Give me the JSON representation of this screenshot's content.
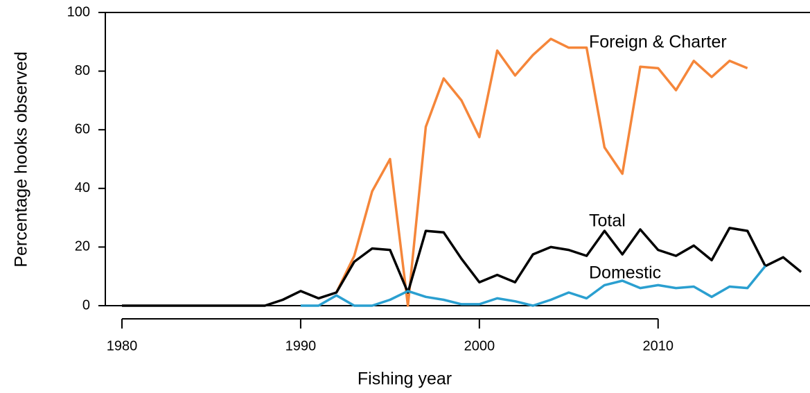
{
  "chart_data": {
    "type": "line",
    "xlabel": "Fishing year",
    "ylabel": "Percentage hooks observed",
    "x": [
      1980,
      1981,
      1982,
      1983,
      1984,
      1985,
      1986,
      1987,
      1988,
      1989,
      1990,
      1991,
      1992,
      1993,
      1994,
      1995,
      1996,
      1997,
      1998,
      1999,
      2000,
      2001,
      2002,
      2003,
      2004,
      2005,
      2006,
      2007,
      2008,
      2009,
      2010,
      2011,
      2012,
      2013,
      2014,
      2015,
      2016,
      2017,
      2018
    ],
    "series": [
      {
        "name": "Foreign & Charter",
        "color": "#f5863a",
        "values": [
          null,
          null,
          null,
          null,
          null,
          null,
          null,
          null,
          null,
          null,
          null,
          null,
          4.5,
          17,
          39,
          50,
          0,
          61,
          77.5,
          70,
          57.5,
          87,
          78.5,
          85.5,
          91,
          88,
          88,
          54,
          45,
          81.5,
          81,
          73.5,
          83.5,
          78,
          83.5,
          81,
          null,
          null,
          null
        ]
      },
      {
        "name": "Total",
        "color": "#000000",
        "values": [
          0,
          0,
          0,
          0,
          0,
          0,
          0,
          0,
          0,
          2,
          5,
          2.5,
          4.5,
          15,
          19.5,
          19,
          4.5,
          25.5,
          25,
          16,
          8,
          10.5,
          8,
          17.5,
          20,
          19,
          17,
          25.5,
          17.5,
          26,
          19,
          17,
          20.5,
          15.5,
          26.5,
          25.5,
          13.5,
          16.5,
          11.5
        ]
      },
      {
        "name": "Domestic",
        "color": "#2a9fd0",
        "values": [
          null,
          null,
          null,
          null,
          null,
          null,
          null,
          null,
          null,
          null,
          0,
          0,
          3.5,
          0,
          0,
          2,
          5,
          3,
          2,
          0.5,
          0.5,
          2.5,
          1.5,
          0,
          2,
          4.5,
          2.5,
          7,
          8.5,
          6,
          7,
          6,
          6.5,
          3,
          6.5,
          6,
          13.5,
          null,
          null
        ]
      }
    ],
    "xlim": [
      1979.07,
      2018.5
    ],
    "xticks": [
      1980,
      1990,
      2000,
      2010
    ],
    "ylim": [
      0,
      100
    ],
    "yticks": [
      0,
      20,
      40,
      60,
      80,
      100
    ]
  }
}
